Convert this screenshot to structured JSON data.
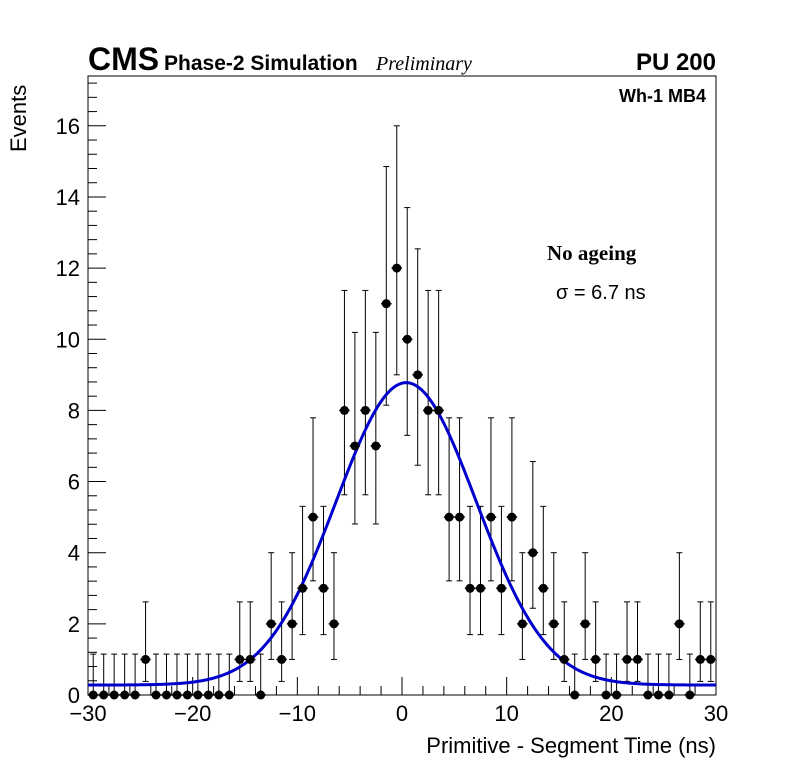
{
  "header": {
    "experiment": "CMS",
    "subtitle": "Phase-2 Simulation",
    "status": "Preliminary",
    "pileup": "PU 200",
    "region": "Wh-1 MB4"
  },
  "annotations": {
    "condition": "No ageing",
    "sigma_text": "σ = 6.7 ns"
  },
  "chart_data": {
    "type": "scatter",
    "title": "",
    "xlabel": "Primitive - Segment Time (ns)",
    "ylabel": "Events",
    "xlim": [
      -30,
      30
    ],
    "ylim": [
      0,
      17.4
    ],
    "x_ticks": [
      -30,
      -20,
      -10,
      0,
      10,
      20,
      30
    ],
    "x_tick_labels": [
      "−30",
      "−20",
      "−10",
      "0",
      "10",
      "20",
      "30"
    ],
    "y_ticks": [
      0,
      2,
      4,
      6,
      8,
      10,
      12,
      14,
      16
    ],
    "y_tick_labels": [
      "0",
      "2",
      "4",
      "6",
      "8",
      "10",
      "12",
      "14",
      "16"
    ],
    "bin_width": 1,
    "series": [
      {
        "name": "Data",
        "marker": "circle",
        "color": "#000000",
        "x": [
          -29.5,
          -28.5,
          -27.5,
          -26.5,
          -25.5,
          -24.5,
          -23.5,
          -22.5,
          -21.5,
          -20.5,
          -19.5,
          -18.5,
          -17.5,
          -16.5,
          -15.5,
          -14.5,
          -13.5,
          -12.5,
          -11.5,
          -10.5,
          -9.5,
          -8.5,
          -7.5,
          -6.5,
          -5.5,
          -4.5,
          -3.5,
          -2.5,
          -1.5,
          -0.5,
          0.5,
          1.5,
          2.5,
          3.5,
          4.5,
          5.5,
          6.5,
          7.5,
          8.5,
          9.5,
          10.5,
          11.5,
          12.5,
          13.5,
          14.5,
          15.5,
          16.5,
          17.5,
          18.5,
          19.5,
          20.5,
          21.5,
          22.5,
          23.5,
          24.5,
          25.5,
          26.5,
          27.5,
          28.5,
          29.5
        ],
        "values": [
          0,
          0,
          0,
          0,
          0,
          1,
          0,
          0,
          0,
          0,
          0,
          0,
          0,
          0,
          1,
          1,
          0,
          2,
          1,
          2,
          3,
          5,
          3,
          2,
          8,
          7,
          8,
          7,
          11,
          12,
          10,
          9,
          8,
          8,
          5,
          5,
          3,
          3,
          5,
          3,
          5,
          2,
          4,
          3,
          2,
          1,
          0,
          2,
          1,
          0,
          0,
          1,
          1,
          0,
          0,
          0,
          2,
          0,
          1,
          1
        ]
      },
      {
        "name": "Gaussian fit",
        "type": "line",
        "color": "#0000cc",
        "mean": 0.4,
        "sigma": 6.7,
        "amplitude": 8.5,
        "baseline": 0.28
      }
    ]
  }
}
